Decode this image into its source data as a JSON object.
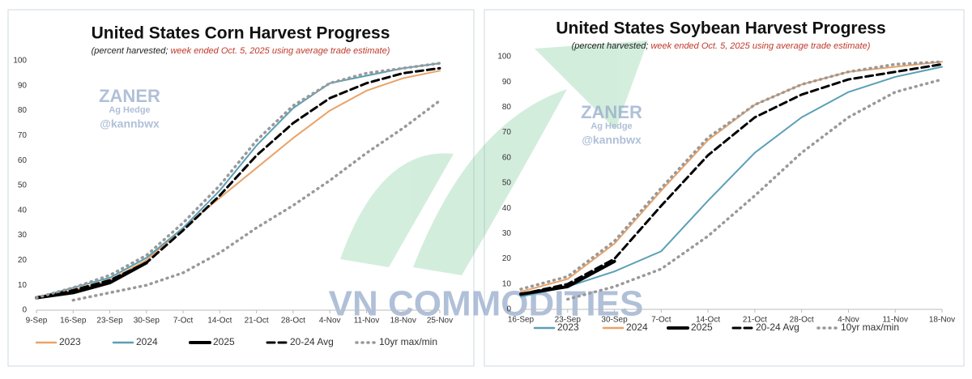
{
  "chart_data": [
    {
      "type": "line",
      "title": "United States Corn Harvest Progress",
      "subtitle": [
        "(percent harvested; ",
        "week ended Oct. 5, 2025 using average trade estimate)"
      ],
      "watermark": [
        "ZANER",
        "Ag Hedge",
        "@kannbwx"
      ],
      "categories": [
        "9-Sep",
        "16-Sep",
        "23-Sep",
        "30-Sep",
        "7-Oct",
        "14-Oct",
        "21-Oct",
        "28-Oct",
        "4-Nov",
        "11-Nov",
        "18-Nov",
        "25-Nov"
      ],
      "ylim": [
        0,
        100
      ],
      "yticks": [
        0,
        10,
        20,
        30,
        40,
        50,
        60,
        70,
        80,
        90,
        100
      ],
      "series": [
        {
          "name": "2023",
          "color": "#e9a268",
          "dash": "solid",
          "values": [
            5,
            8,
            12,
            20,
            33,
            45,
            57,
            69,
            80,
            88,
            93,
            96
          ]
        },
        {
          "name": "2024",
          "color": "#5b9fb5",
          "dash": "solid",
          "values": [
            5,
            9,
            13,
            21,
            33,
            48,
            66,
            81,
            91,
            94,
            97,
            99
          ]
        },
        {
          "name": "2025",
          "color": "#000000",
          "dash": "solid",
          "width": 4,
          "values": [
            5,
            7,
            11,
            19,
            null,
            null,
            null,
            null,
            null,
            null,
            null,
            null
          ]
        },
        {
          "name": "20-24 Avg",
          "color": "#000000",
          "dash": "dashed",
          "width": 3,
          "values": [
            5,
            8,
            12,
            19,
            32,
            46,
            62,
            75,
            85,
            91,
            95,
            97
          ]
        },
        {
          "name": "10yr max/min",
          "color": "#999999",
          "dash": "dotted",
          "max": [
            5,
            9,
            14,
            22,
            35,
            50,
            68,
            82,
            91,
            95,
            97,
            99
          ],
          "min": [
            null,
            4,
            7,
            10,
            15,
            23,
            33,
            42,
            52,
            63,
            73,
            84
          ]
        }
      ]
    },
    {
      "type": "line",
      "title": "United States Soybean Harvest Progress",
      "subtitle": [
        "(percent harvested; ",
        "week ended Oct. 5, 2025 using average trade estimate)"
      ],
      "watermark": [
        "ZANER",
        "Ag Hedge",
        "@kannbwx"
      ],
      "categories": [
        "16-Sep",
        "23-Sep",
        "30-Sep",
        "7-Oct",
        "14-Oct",
        "21-Oct",
        "28-Oct",
        "4-Nov",
        "11-Nov",
        "18-Nov"
      ],
      "ylim": [
        0,
        100
      ],
      "yticks": [
        0,
        10,
        20,
        30,
        40,
        50,
        60,
        70,
        80,
        90,
        100
      ],
      "series": [
        {
          "name": "2023",
          "color": "#5b9fb5",
          "dash": "solid",
          "values": [
            5,
            9,
            15,
            23,
            43,
            62,
            76,
            86,
            92,
            96
          ]
        },
        {
          "name": "2024",
          "color": "#e9a268",
          "dash": "solid",
          "values": [
            7,
            12,
            26,
            47,
            67,
            81,
            89,
            94,
            96,
            98
          ]
        },
        {
          "name": "2025",
          "color": "#000000",
          "dash": "solid",
          "width": 4,
          "values": [
            6,
            9,
            19,
            null,
            null,
            null,
            null,
            null,
            null,
            null
          ]
        },
        {
          "name": "20-24 Avg",
          "color": "#000000",
          "dash": "dashed",
          "width": 3,
          "values": [
            6,
            10,
            20,
            41,
            61,
            76,
            85,
            91,
            94,
            97
          ]
        },
        {
          "name": "10yr max/min",
          "color": "#999999",
          "dash": "dotted",
          "max": [
            8,
            13,
            27,
            48,
            68,
            81,
            89,
            94,
            97,
            98
          ],
          "min": [
            null,
            4,
            9,
            16,
            29,
            45,
            62,
            76,
            86,
            91
          ]
        }
      ]
    }
  ],
  "watermark": "VN COMMODITIES"
}
